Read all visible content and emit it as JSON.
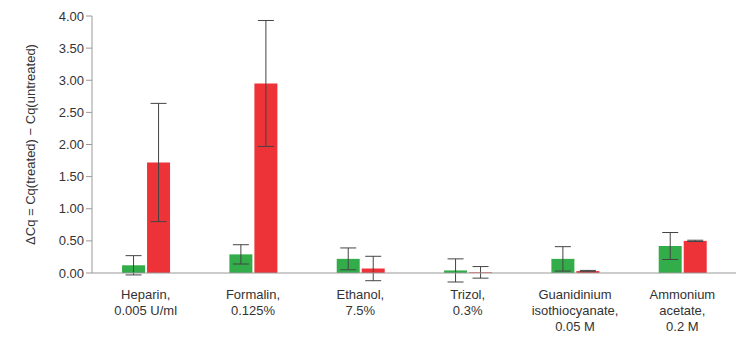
{
  "chart_data": {
    "type": "bar",
    "y_label": "ΔCq = Cq(treated) − Cq(untreated)",
    "categories": [
      "Heparin,\n0.005 U/ml",
      "Formalin,\n0.125%",
      "Ethanol,\n7.5%",
      "Trizol,\n0.3%",
      "Guanidinium\nisothiocyanate,\n0.05 M",
      "Ammonium\nacetate,\n0.2 M"
    ],
    "series": [
      {
        "color": "#33ad4a",
        "values": [
          0.12,
          0.29,
          0.22,
          0.04,
          0.22,
          0.42
        ],
        "errors": [
          0.15,
          0.15,
          0.17,
          0.18,
          0.19,
          0.21
        ]
      },
      {
        "color": "#ee3338",
        "values": [
          1.72,
          2.95,
          0.07,
          0.01,
          0.03,
          0.5
        ],
        "errors": [
          0.92,
          0.98,
          0.19,
          0.09,
          0.01,
          0.01
        ]
      }
    ],
    "ylim": [
      0,
      4
    ],
    "yticks": [
      {
        "value": 0,
        "label": "0.00"
      },
      {
        "value": 0.5,
        "label": "0.50"
      },
      {
        "value": 1,
        "label": "1.00"
      },
      {
        "value": 1.5,
        "label": "1.50"
      },
      {
        "value": 2,
        "label": "2.00"
      },
      {
        "value": 2.5,
        "label": "2.50"
      },
      {
        "value": 3,
        "label": "3.00"
      },
      {
        "value": 3.5,
        "label": "3.50"
      },
      {
        "value": 4,
        "label": "4.00"
      }
    ],
    "grid": false
  }
}
